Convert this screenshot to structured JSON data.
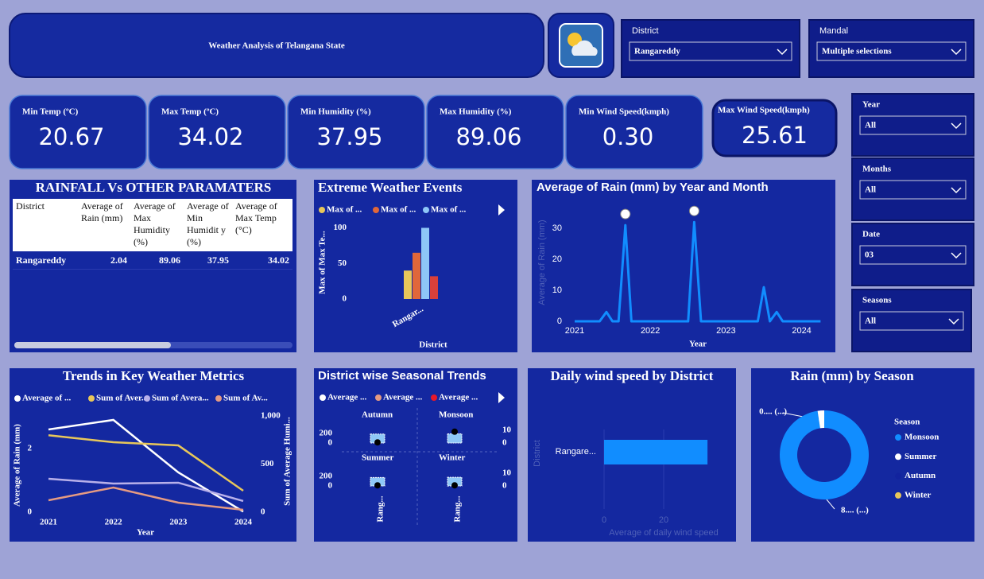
{
  "header": {
    "title": "Weather Analysis of Telangana State"
  },
  "slicers": [
    {
      "label": "District",
      "value": "Rangareddy"
    },
    {
      "label": "Mandal",
      "value": "Multiple selections"
    },
    {
      "label": "Year",
      "value": "All"
    },
    {
      "label": "Months",
      "value": "All"
    },
    {
      "label": "Date",
      "value": "03"
    },
    {
      "label": "Seasons",
      "value": "All"
    }
  ],
  "cards": [
    {
      "label": "Min Temp (ºC)",
      "value": "20.67"
    },
    {
      "label": "Max Temp (ºC)",
      "value": "34.02"
    },
    {
      "label": "Min Humidity (%)",
      "value": "37.95"
    },
    {
      "label": "Max Humidity (%)",
      "value": "89.06"
    },
    {
      "label": "Min Wind Speed(kmph)",
      "value": "0.30"
    },
    {
      "label": "Max Wind Speed(kmph)",
      "value": "25.61"
    }
  ],
  "table": {
    "title": "RAINFALL Vs OTHER PARAMATERS",
    "columns": [
      "District",
      "Average of Rain (mm)",
      "Average of Max Humidity (%)",
      "Average of Min Humidit y (%)",
      "Average of Max Temp (°C)"
    ],
    "rows": [
      [
        "Rangareddy",
        "2.04",
        "89.06",
        "37.95",
        "34.02"
      ]
    ]
  },
  "chart_data": [
    {
      "type": "bar",
      "title": "Extreme Weather Events",
      "x_label": "District",
      "y_label": "Max of Max Te...",
      "categories": [
        "Rangar..."
      ],
      "series": [
        {
          "name": "Max of ...",
          "color": "#e8c75a",
          "values": [
            40
          ]
        },
        {
          "name": "Max of ...",
          "color": "#e0673a",
          "values": [
            65
          ]
        },
        {
          "name": "Max of ...",
          "color": "#8ec7f7",
          "values": [
            100
          ]
        },
        {
          "color": "#d9403a",
          "values": [
            32
          ]
        }
      ],
      "ylim": [
        0,
        105
      ],
      "yticks": [
        0,
        50,
        100
      ]
    },
    {
      "type": "line",
      "title": "Average of Rain (mm) by Year and Month",
      "x_label": "Year",
      "y_label": "Average of Rain (mm)",
      "color": "#118dff",
      "x": [
        2021,
        2021.08,
        2021.17,
        2021.25,
        2021.33,
        2021.42,
        2021.5,
        2021.58,
        2021.67,
        2021.75,
        2021.83,
        2021.92,
        2022,
        2022.08,
        2022.17,
        2022.25,
        2022.33,
        2022.42,
        2022.5,
        2022.58,
        2022.67,
        2022.75,
        2022.83,
        2022.92,
        2023,
        2023.08,
        2023.17,
        2023.25,
        2023.33,
        2023.42,
        2023.5,
        2023.58,
        2023.67,
        2023.75,
        2023.83,
        2023.92,
        2024,
        2024.08,
        2024.17,
        2024.25
      ],
      "values": [
        0,
        0,
        0,
        0,
        0,
        3,
        0,
        0,
        31,
        0,
        0,
        0,
        0,
        0,
        0,
        0,
        0,
        0,
        0,
        32,
        0,
        0,
        0,
        0,
        0,
        0,
        0,
        0,
        0,
        0,
        11,
        0,
        3,
        0,
        0,
        0,
        0,
        0,
        0,
        0
      ],
      "xlim": [
        2021,
        2024.33
      ],
      "xticks": [
        2021,
        2022,
        2023,
        2024
      ],
      "ylim": [
        0,
        35
      ],
      "yticks": [
        0,
        10,
        20,
        30
      ]
    },
    {
      "type": "line",
      "title": "Trends in Key Weather Metrics",
      "x_label": "Year",
      "y_label": "Average of Rain (mm)",
      "y2_label": "Sum of Average Humi...",
      "categories": [
        "2021",
        "2022",
        "2023",
        "2024"
      ],
      "series": [
        {
          "name": "Average of ...",
          "color": "#ffffff",
          "values": [
            2.6,
            2.9,
            1.25,
            0.02
          ]
        },
        {
          "name": "Sum of Aver...",
          "color": "#e8c75a",
          "axis": "y2",
          "values": [
            800,
            727,
            694,
            223
          ]
        },
        {
          "name": "Sum of Avera...",
          "color": "#b8b0ea",
          "axis": "y2",
          "values": [
            347,
            298,
            306,
            116
          ]
        },
        {
          "name": "Sum of Av...",
          "color": "#e59a82",
          "axis": "y2",
          "values": [
            124,
            256,
            99,
            25
          ]
        }
      ],
      "ylim": [
        0,
        3.1
      ],
      "yticks": [
        0,
        2
      ],
      "y2lim": [
        0,
        1025
      ],
      "y2ticks": [
        0,
        500,
        {
          "value": 1000,
          "label": "1,000"
        }
      ]
    },
    {
      "type": "bar",
      "title": "District wise Seasonal Trends",
      "legend": [
        {
          "name": "Average ...",
          "color": "#ffffff"
        },
        {
          "name": "Average ...",
          "color": "#e59a82"
        },
        {
          "name": "Average ...",
          "color": "#e8182a"
        }
      ],
      "categories": [
        "Rang..."
      ],
      "bar_color": "#8ec7f7",
      "point_color": "#000000",
      "panels": [
        {
          "title": "Autumn",
          "values": [
            190
          ],
          "points": [
            0.5
          ]
        },
        {
          "title": "Monsoon",
          "values": [
            195
          ],
          "points": [
            9
          ]
        },
        {
          "title": "Summer",
          "values": [
            180
          ],
          "points": [
            0.5
          ]
        },
        {
          "title": "Winter",
          "values": [
            185
          ],
          "points": [
            0.5
          ]
        }
      ],
      "ylim": [
        0,
        220
      ],
      "yticks": [
        0,
        200
      ],
      "y2lim": [
        0,
        12
      ],
      "y2ticks": [
        0,
        10
      ]
    },
    {
      "type": "bar",
      "orientation": "horizontal",
      "title": "Daily wind speed by District",
      "x_label": "Average of daily wind speed",
      "y_label": "District",
      "categories": [
        "Rangare..."
      ],
      "values": [
        34.7
      ],
      "color": "#118dff",
      "xlim": [
        0,
        40
      ],
      "xticks": [
        0,
        20
      ],
      "grid": true
    },
    {
      "type": "donut",
      "title": "Rain (mm) by Season",
      "legend_title": "Season",
      "categories": [
        "Monsoon",
        "Summer",
        "Autumn",
        "Winter"
      ],
      "values": [
        8.1,
        0.2,
        0,
        0
      ],
      "value_labels": [
        "8.... (...)",
        "0.... (...)",
        null,
        null
      ],
      "colors": [
        "#118dff",
        "#ffffff",
        "#12239e",
        "#e8c75a"
      ]
    }
  ]
}
